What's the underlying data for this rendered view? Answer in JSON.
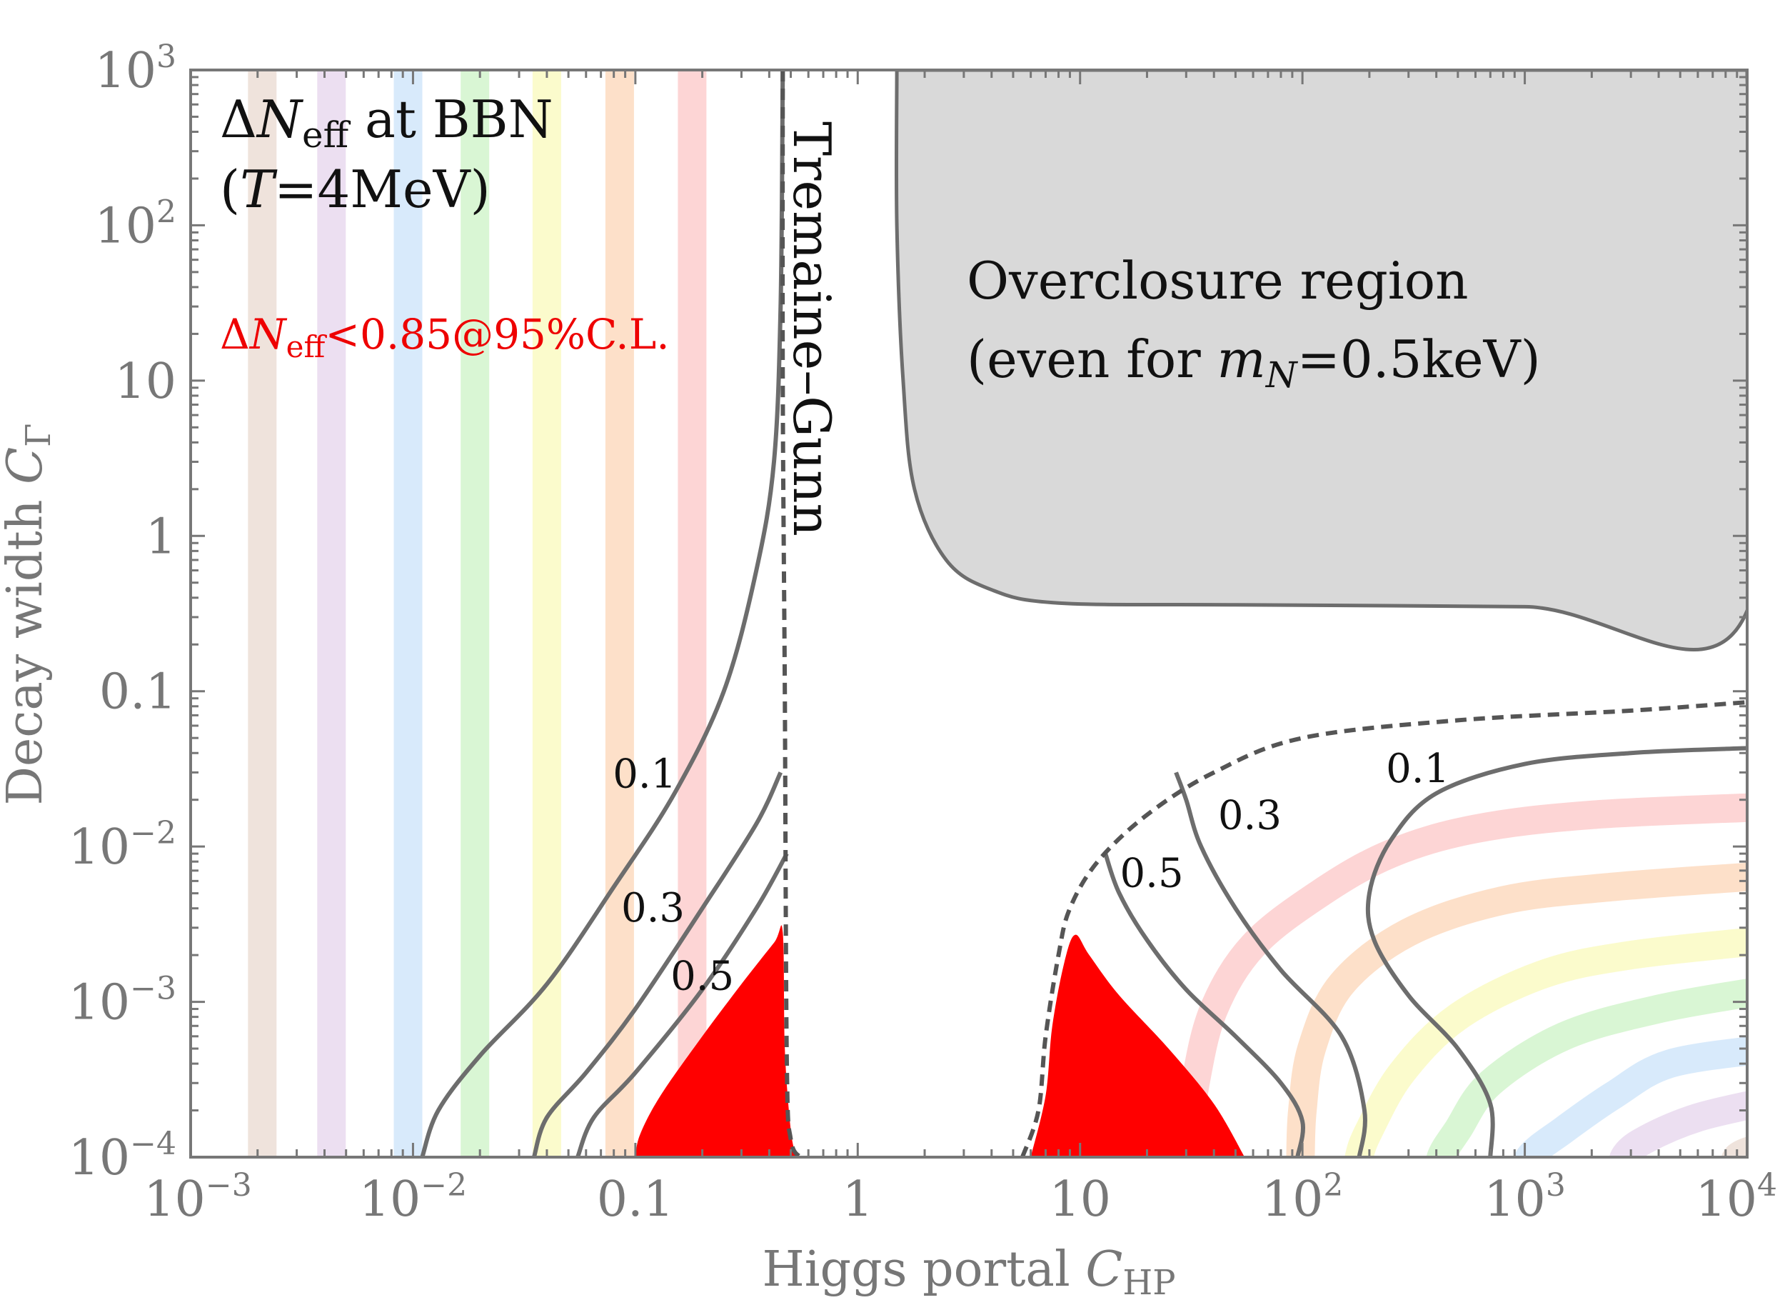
{
  "chart_data": {
    "type": "contour",
    "title": "",
    "xlabel": {
      "text": "Higgs portal ",
      "var": "C",
      "sub": "HP"
    },
    "ylabel": {
      "text": "Decay width ",
      "var": "C",
      "sub": "Γ"
    },
    "xscale": "log",
    "yscale": "log",
    "xlim": [
      0.001,
      10000
    ],
    "ylim": [
      0.0001,
      1000
    ],
    "x_ticks": [
      {
        "value": 0.001,
        "base": "10",
        "sup": "−3"
      },
      {
        "value": 0.01,
        "base": "10",
        "sup": "−2"
      },
      {
        "value": 0.1,
        "base": "0.1",
        "sup": ""
      },
      {
        "value": 1,
        "base": "1",
        "sup": ""
      },
      {
        "value": 10,
        "base": "10",
        "sup": ""
      },
      {
        "value": 100,
        "base": "10",
        "sup": "2"
      },
      {
        "value": 1000,
        "base": "10",
        "sup": "3"
      },
      {
        "value": 10000,
        "base": "10",
        "sup": "4"
      }
    ],
    "y_ticks": [
      {
        "value": 0.0001,
        "base": "10",
        "sup": "−4"
      },
      {
        "value": 0.001,
        "base": "10",
        "sup": "−3"
      },
      {
        "value": 0.01,
        "base": "10",
        "sup": "−2"
      },
      {
        "value": 0.1,
        "base": "0.1",
        "sup": ""
      },
      {
        "value": 1,
        "base": "1",
        "sup": ""
      },
      {
        "value": 10,
        "base": "10",
        "sup": ""
      },
      {
        "value": 100,
        "base": "10",
        "sup": "2"
      },
      {
        "value": 1000,
        "base": "10",
        "sup": "3"
      }
    ],
    "annotations": {
      "main_title_line1": {
        "delta": "Δ",
        "var": "N",
        "sub": "eff",
        "rest": " at BBN"
      },
      "main_title_line2": {
        "open": "(",
        "var": "T",
        "rest": "=4MeV)"
      },
      "constraint": {
        "delta": "Δ",
        "var": "N",
        "sub": "eff",
        "rest": "<0.85@95%C.L."
      },
      "tremaine_gunn": "Tremaine–Gunn",
      "overclosure_line1": "Overclosure region",
      "overclosure_line2": {
        "open": "(even for ",
        "var": "m",
        "sub": "N",
        "rest": "=0.5keV)"
      }
    },
    "contour_labels": [
      {
        "text": "0.1",
        "x": 0.11,
        "y": 0.024
      },
      {
        "text": "0.3",
        "x": 0.12,
        "y": 0.0033
      },
      {
        "text": "0.5",
        "x": 0.2,
        "y": 0.0012
      },
      {
        "text": "0.5",
        "x": 21,
        "y": 0.0055
      },
      {
        "text": "0.3",
        "x": 58,
        "y": 0.013
      },
      {
        "text": "0.1",
        "x": 330,
        "y": 0.026
      }
    ],
    "contours": [
      {
        "level": 0.1,
        "style": "solid",
        "branch": "left",
        "points": [
          [
            0.011,
            0.0001
          ],
          [
            0.013,
            0.0002
          ],
          [
            0.02,
            0.00045
          ],
          [
            0.04,
            0.0013
          ],
          [
            0.08,
            0.0055
          ],
          [
            0.15,
            0.022
          ],
          [
            0.25,
            0.1
          ],
          [
            0.35,
            0.6
          ],
          [
            0.42,
            3
          ],
          [
            0.45,
            30
          ],
          [
            0.46,
            1000
          ]
        ]
      },
      {
        "level": 0.3,
        "style": "solid",
        "branch": "left",
        "points": [
          [
            0.035,
            0.0001
          ],
          [
            0.04,
            0.00018
          ],
          [
            0.06,
            0.00035
          ],
          [
            0.1,
            0.0009
          ],
          [
            0.2,
            0.004
          ],
          [
            0.35,
            0.014
          ],
          [
            0.45,
            0.03
          ]
        ]
      },
      {
        "level": 0.5,
        "style": "solid",
        "branch": "left",
        "points": [
          [
            0.055,
            0.0001
          ],
          [
            0.065,
            0.00018
          ],
          [
            0.1,
            0.00035
          ],
          [
            0.2,
            0.0012
          ],
          [
            0.35,
            0.004
          ],
          [
            0.48,
            0.009
          ]
        ]
      },
      {
        "level": 0,
        "style": "dashed",
        "branch": "tremaine-gunn",
        "points": [
          [
            0.46,
            1000
          ],
          [
            0.46,
            10
          ],
          [
            0.47,
            0.1
          ],
          [
            0.48,
            0.0004
          ],
          [
            0.5,
            0.00013
          ],
          [
            0.55,
            0.0001
          ]
        ]
      },
      {
        "level": 0.5,
        "style": "solid",
        "branch": "right",
        "points": [
          [
            13,
            0.009
          ],
          [
            15,
            0.005
          ],
          [
            20,
            0.0025
          ],
          [
            30,
            0.0012
          ],
          [
            50,
            0.0006
          ],
          [
            80,
            0.0003
          ],
          [
            100,
            0.00017
          ],
          [
            95,
            0.0001
          ]
        ]
      },
      {
        "level": 0.3,
        "style": "solid",
        "branch": "right",
        "points": [
          [
            27,
            0.03
          ],
          [
            30,
            0.02
          ],
          [
            35,
            0.01
          ],
          [
            50,
            0.004
          ],
          [
            80,
            0.0016
          ],
          [
            150,
            0.0006
          ],
          [
            190,
            0.0002
          ],
          [
            180,
            0.0001
          ]
        ]
      },
      {
        "level": 0.1,
        "style": "solid",
        "branch": "right",
        "points": [
          [
            10000,
            0.043
          ],
          [
            3000,
            0.04
          ],
          [
            1000,
            0.034
          ],
          [
            400,
            0.022
          ],
          [
            250,
            0.011
          ],
          [
            200,
            0.005
          ],
          [
            210,
            0.0025
          ],
          [
            300,
            0.0011
          ],
          [
            500,
            0.0005
          ],
          [
            700,
            0.00022
          ],
          [
            700,
            0.0001
          ]
        ]
      },
      {
        "level": 0,
        "style": "dashed",
        "branch": "right-boundary",
        "points": [
          [
            5.5,
            0.0001
          ],
          [
            6.5,
            0.0002
          ],
          [
            7,
            0.0006
          ],
          [
            8,
            0.002
          ],
          [
            9,
            0.004
          ],
          [
            12,
            0.008
          ],
          [
            20,
            0.016
          ],
          [
            40,
            0.03
          ],
          [
            100,
            0.05
          ],
          [
            500,
            0.065
          ],
          [
            3000,
            0.075
          ],
          [
            10000,
            0.085
          ]
        ]
      }
    ],
    "series": [
      {
        "name": "constraint-left",
        "type": "filled-region",
        "color": "#ff0000",
        "points": [
          [
            0.1,
            0.0001
          ],
          [
            0.105,
            0.00014
          ],
          [
            0.13,
            0.00025
          ],
          [
            0.2,
            0.0006
          ],
          [
            0.3,
            0.0013
          ],
          [
            0.42,
            0.0024
          ],
          [
            0.46,
            0.0028
          ],
          [
            0.47,
            0.0005
          ],
          [
            0.5,
            0.00015
          ],
          [
            0.53,
            0.0001
          ]
        ]
      },
      {
        "name": "constraint-right",
        "type": "filled-region",
        "color": "#ff0000",
        "points": [
          [
            6,
            0.0001
          ],
          [
            7,
            0.00025
          ],
          [
            7.5,
            0.0007
          ],
          [
            8.5,
            0.0018
          ],
          [
            9.5,
            0.0027
          ],
          [
            11,
            0.002
          ],
          [
            15,
            0.0011
          ],
          [
            25,
            0.0005
          ],
          [
            40,
            0.00022
          ],
          [
            55,
            0.0001
          ]
        ]
      },
      {
        "name": "overclosure",
        "type": "filled-region",
        "color": "#d9d9d9",
        "points": [
          [
            1.5,
            1000
          ],
          [
            1.5,
            100
          ],
          [
            1.6,
            10
          ],
          [
            1.8,
            2
          ],
          [
            2.5,
            0.7
          ],
          [
            4,
            0.45
          ],
          [
            8,
            0.37
          ],
          [
            50,
            0.36
          ],
          [
            1000,
            0.35
          ],
          [
            10000,
            0.33
          ],
          [
            10000,
            1000
          ]
        ]
      }
    ],
    "bands": [
      {
        "color": "#efe3dc",
        "vertical_x": 0.0021
      },
      {
        "color": "#ecdff1",
        "vertical_x": 0.0043
      },
      {
        "color": "#d8eafb",
        "vertical_x": 0.0095
      },
      {
        "color": "#d9f6d4",
        "vertical_x": 0.019
      },
      {
        "color": "#fbfbcc",
        "vertical_x": 0.04
      },
      {
        "color": "#fde0c9",
        "vertical_x": 0.085
      },
      {
        "color": "#fdd5d5",
        "vertical_x": 0.18
      },
      {
        "color": "#fdd5d5",
        "curve": [
          [
            10000,
            0.018
          ],
          [
            2000,
            0.016
          ],
          [
            600,
            0.013
          ],
          [
            250,
            0.009
          ],
          [
            120,
            0.005
          ],
          [
            60,
            0.0023
          ],
          [
            40,
            0.0009
          ],
          [
            33,
            0.0003
          ],
          [
            30,
            0.0001
          ]
        ]
      },
      {
        "color": "#fde0c9",
        "curve": [
          [
            10000,
            0.0065
          ],
          [
            2500,
            0.0055
          ],
          [
            800,
            0.0045
          ],
          [
            300,
            0.0028
          ],
          [
            150,
            0.0013
          ],
          [
            110,
            0.0005
          ],
          [
            100,
            0.0002
          ],
          [
            98,
            0.0001
          ]
        ]
      },
      {
        "color": "#fbfbcc",
        "curve": [
          [
            10000,
            0.0025
          ],
          [
            3000,
            0.002
          ],
          [
            1200,
            0.0015
          ],
          [
            500,
            0.0008
          ],
          [
            280,
            0.00035
          ],
          [
            200,
            0.00015
          ],
          [
            180,
            0.0001
          ]
        ]
      },
      {
        "color": "#d9f6d4",
        "curve": [
          [
            10000,
            0.0012
          ],
          [
            4000,
            0.0009
          ],
          [
            1500,
            0.0006
          ],
          [
            700,
            0.0003
          ],
          [
            500,
            0.00015
          ],
          [
            420,
            0.0001
          ]
        ]
      },
      {
        "color": "#d8eafb",
        "curve": [
          [
            10000,
            0.0005
          ],
          [
            4500,
            0.0004
          ],
          [
            2500,
            0.00025
          ],
          [
            1500,
            0.00015
          ],
          [
            1050,
            0.0001
          ]
        ]
      },
      {
        "color": "#ecdff1",
        "curve": [
          [
            10000,
            0.00023
          ],
          [
            6000,
            0.00018
          ],
          [
            3500,
            0.00013
          ],
          [
            2800,
            0.0001
          ]
        ]
      },
      {
        "color": "#efe3dc",
        "curve": [
          [
            10000,
            0.00012
          ],
          [
            9000,
            0.0001
          ]
        ]
      }
    ]
  }
}
